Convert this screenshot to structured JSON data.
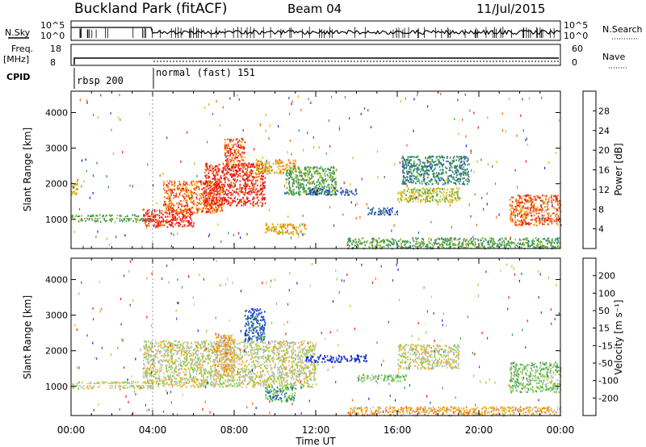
{
  "header": {
    "site": "Buckland Park (fitACF)",
    "beam": "Beam 04",
    "date": "11/Jul/2015"
  },
  "strip_labels": {
    "nsky": "N.Sky",
    "nsky_ticks": [
      "10^5",
      "10^0"
    ],
    "nsearch": "N.Search",
    "nsearch_ticks": [
      "10^5",
      "10^0"
    ],
    "freq": "Freq.",
    "freq_unit": "[MHz]",
    "freq_ticks": [
      "18",
      "8"
    ],
    "nave": "Nave",
    "nave_ticks": [
      "60",
      "0"
    ],
    "cpid": "CPID"
  },
  "cpid_segments": [
    {
      "label": "rbsp 200",
      "start_h": 0,
      "end_h": 4
    },
    {
      "label": "normal (fast) 151",
      "start_h": 4,
      "end_h": 24
    }
  ],
  "time_axis": {
    "label": "Time UT",
    "ticks": [
      "00:00",
      "04:00",
      "08:00",
      "12:00",
      "16:00",
      "20:00",
      "00:00"
    ],
    "range_h": [
      0,
      24
    ]
  },
  "range_axis": {
    "label": "Slant Range [km]",
    "ticks": [
      "1000",
      "2000",
      "3000",
      "4000"
    ],
    "range_km": [
      180,
      4600
    ]
  },
  "power_scale": {
    "label": "Power [dB]",
    "ticks": [
      "4",
      "8",
      "12",
      "16",
      "20",
      "24",
      "28"
    ],
    "colors": [
      "#1428d8",
      "#2858a8",
      "#308868",
      "#48a048",
      "#b0c020",
      "#f0b010",
      "#f06010",
      "#e81818"
    ]
  },
  "velocity_scale": {
    "label": "Velocity [m s⁻¹]",
    "ticks": [
      "200",
      "100",
      "50",
      "15",
      "-15",
      "-50",
      "-100",
      "-200"
    ],
    "colors": [
      "#1428d8",
      "#2850c0",
      "#30a050",
      "#80d040",
      "#c0c0c0",
      "#f0b010",
      "#f07010",
      "#e82010",
      "#e81818"
    ]
  },
  "chart_data": [
    {
      "type": "heatmap",
      "name": "power",
      "xlabel": "Time UT",
      "ylabel": "Slant Range [km]",
      "xlim_h": [
        0,
        24
      ],
      "ylim_km": [
        180,
        4600
      ],
      "regions": [
        {
          "t0": 0.0,
          "t1": 4.0,
          "r0": 950,
          "r1": 1150,
          "p": 3
        },
        {
          "t0": 0.0,
          "t1": 0.3,
          "r0": 1700,
          "r1": 2100,
          "p": 5
        },
        {
          "t0": 3.5,
          "t1": 6.0,
          "r0": 800,
          "r1": 1300,
          "p": 7
        },
        {
          "t0": 4.5,
          "t1": 7.5,
          "r0": 1200,
          "r1": 2100,
          "p": 6
        },
        {
          "t0": 6.5,
          "t1": 9.5,
          "r0": 1400,
          "r1": 2600,
          "p": 7
        },
        {
          "t0": 7.5,
          "t1": 8.5,
          "r0": 2500,
          "r1": 3300,
          "p": 6
        },
        {
          "t0": 9.0,
          "t1": 11.0,
          "r0": 2300,
          "r1": 2700,
          "p": 5
        },
        {
          "t0": 10.5,
          "t1": 13.0,
          "r0": 1700,
          "r1": 2500,
          "p": 3
        },
        {
          "t0": 9.5,
          "t1": 11.5,
          "r0": 600,
          "r1": 900,
          "p": 5
        },
        {
          "t0": 11.5,
          "t1": 14.0,
          "r0": 1700,
          "r1": 1900,
          "p": 1
        },
        {
          "t0": 14.5,
          "t1": 16.0,
          "r0": 1150,
          "r1": 1350,
          "p": 1
        },
        {
          "t0": 16.0,
          "t1": 19.0,
          "r0": 1500,
          "r1": 1900,
          "p": 4
        },
        {
          "t0": 16.2,
          "t1": 19.5,
          "r0": 2000,
          "r1": 2800,
          "p": 2
        },
        {
          "t0": 21.5,
          "t1": 24.0,
          "r0": 850,
          "r1": 1700,
          "p": 6
        },
        {
          "t0": 13.5,
          "t1": 24.0,
          "r0": 200,
          "r1": 500,
          "p": 3
        }
      ]
    },
    {
      "type": "heatmap",
      "name": "velocity",
      "xlabel": "Time UT",
      "ylabel": "Slant Range [km]",
      "xlim_h": [
        0,
        24
      ],
      "ylim_km": [
        180,
        4600
      ],
      "regions": [
        {
          "t0": 0.0,
          "t1": 4.0,
          "r0": 950,
          "r1": 1150,
          "v": 4
        },
        {
          "t0": 3.5,
          "t1": 12.0,
          "r0": 1000,
          "r1": 2300,
          "v": 4
        },
        {
          "t0": 7.0,
          "t1": 8.0,
          "r0": 1300,
          "r1": 2500,
          "v": 5
        },
        {
          "t0": 8.5,
          "t1": 9.5,
          "r0": 2300,
          "r1": 3200,
          "v": 1
        },
        {
          "t0": 11.5,
          "t1": 14.5,
          "r0": 1700,
          "r1": 1900,
          "v": 0
        },
        {
          "t0": 14.0,
          "t1": 16.5,
          "r0": 1150,
          "r1": 1350,
          "v": 3
        },
        {
          "t0": 9.5,
          "t1": 11.0,
          "r0": 600,
          "r1": 1000,
          "v": 2
        },
        {
          "t0": 16.0,
          "t1": 19.0,
          "r0": 1500,
          "r1": 2200,
          "v": 4
        },
        {
          "t0": 21.5,
          "t1": 24.0,
          "r0": 850,
          "r1": 1700,
          "v": 3
        },
        {
          "t0": 13.5,
          "t1": 24.0,
          "r0": 200,
          "r1": 450,
          "v": 5
        }
      ]
    }
  ]
}
